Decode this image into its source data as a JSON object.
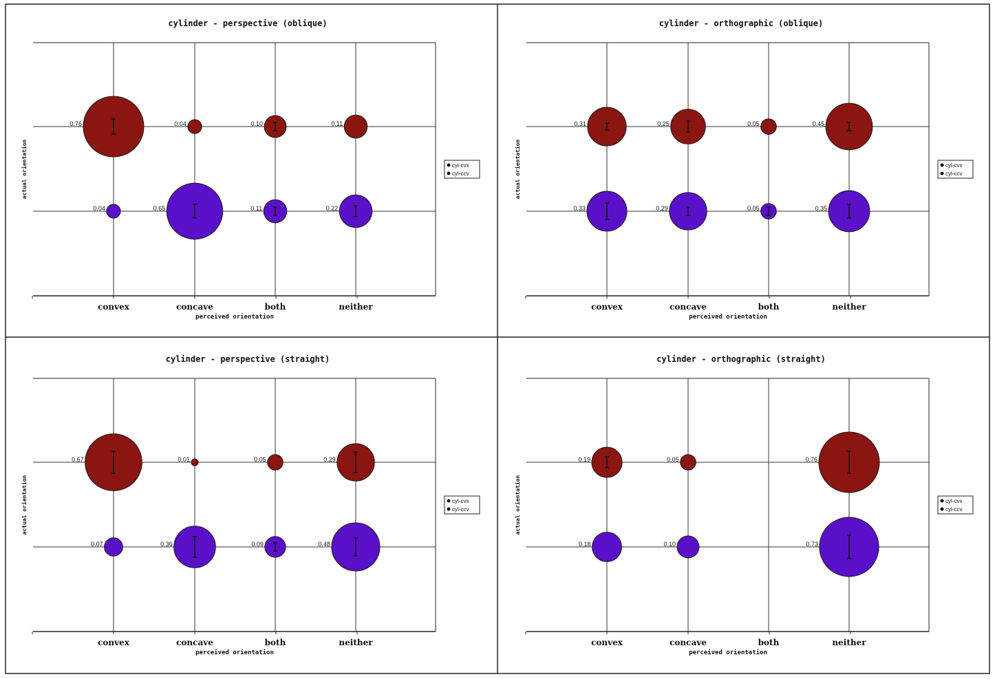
{
  "legend": [
    {
      "label": "cyl-cvx",
      "color": "#111111"
    },
    {
      "label": "cyl-ccv",
      "color": "#111111"
    }
  ],
  "colors": {
    "cyl-cvx": "#8b1510",
    "cyl-ccv": "#5a10c8",
    "frame": "#222222",
    "grid": "#333333"
  },
  "chart_data": [
    {
      "type": "scatter",
      "title": "cylinder - perspective (oblique)",
      "xlabel": "perceived orientation",
      "ylabel": "actual orientation",
      "categories": [
        "convex",
        "concave",
        "both",
        "neither"
      ],
      "series": [
        {
          "name": "cyl-cvx",
          "values": [
            0.76,
            0.04,
            0.1,
            0.11
          ],
          "labels": [
            "0.76",
            "0.04",
            "0.10",
            "0.11"
          ],
          "errors": [
            0.11,
            0,
            0.06,
            0
          ]
        },
        {
          "name": "cyl-ccv",
          "values": [
            0.04,
            0.65,
            0.11,
            0.22
          ],
          "labels": [
            "0.04",
            "0.65",
            "0.11",
            "0.22"
          ],
          "errors": [
            0,
            0.1,
            0.06,
            0.08
          ]
        }
      ]
    },
    {
      "type": "scatter",
      "title": "cylinder - orthographic (oblique)",
      "xlabel": "perceived orientation",
      "ylabel": "actual orientation",
      "categories": [
        "convex",
        "concave",
        "both",
        "neither"
      ],
      "series": [
        {
          "name": "cyl-cvx",
          "values": [
            0.31,
            0.25,
            0.05,
            0.45
          ],
          "labels": [
            "0.31",
            "0.25",
            "0.05",
            "0.45"
          ],
          "errors": [
            0.05,
            0.08,
            0,
            0.06
          ]
        },
        {
          "name": "cyl-ccv",
          "values": [
            0.33,
            0.29,
            0.05,
            0.35
          ],
          "labels": [
            "0.33",
            "0.29",
            "0.05",
            "0.35"
          ],
          "errors": [
            0.12,
            0.06,
            0.06,
            0.1
          ]
        }
      ]
    },
    {
      "type": "scatter",
      "title": "cylinder - perspective (straight)",
      "xlabel": "perceived orientation",
      "ylabel": "actual orientation",
      "categories": [
        "convex",
        "concave",
        "both",
        "neither"
      ],
      "series": [
        {
          "name": "cyl-cvx",
          "values": [
            0.67,
            0.01,
            0.05,
            0.29
          ],
          "labels": [
            "0.67",
            "0.01",
            "0.05",
            "0.29"
          ],
          "errors": [
            0.16,
            0,
            0,
            0.15
          ]
        },
        {
          "name": "cyl-ccv",
          "values": [
            0.07,
            0.36,
            0.09,
            0.48
          ],
          "labels": [
            "0.07",
            "0.36",
            "0.09",
            "0.48"
          ],
          "errors": [
            0,
            0.15,
            0.06,
            0.13
          ]
        }
      ]
    },
    {
      "type": "scatter",
      "title": "cylinder - orthographic (straight)",
      "xlabel": "perceived orientation",
      "ylabel": "actual orientation",
      "categories": [
        "convex",
        "concave",
        "both",
        "neither"
      ],
      "series": [
        {
          "name": "cyl-cvx",
          "values": [
            0.19,
            0.05,
            null,
            0.76
          ],
          "labels": [
            "0.19",
            "0.05",
            "",
            "0.76"
          ],
          "errors": [
            0.08,
            0,
            0,
            0.16
          ]
        },
        {
          "name": "cyl-ccv",
          "values": [
            0.18,
            0.1,
            null,
            0.73
          ],
          "labels": [
            "0.18",
            "0.10",
            "",
            "0.73"
          ],
          "errors": [
            0,
            0,
            0,
            0.17
          ]
        }
      ]
    }
  ]
}
